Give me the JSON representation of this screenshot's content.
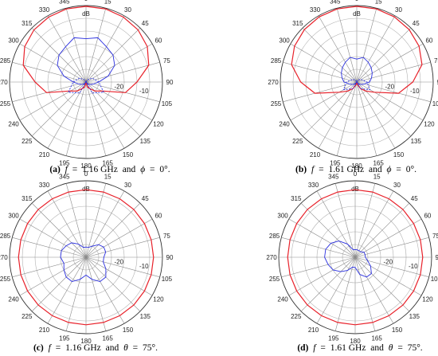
{
  "chart_data": [
    {
      "type": "polar",
      "label": "(a)",
      "caption": {
        "var1": "f",
        "freq": "1.16 GHz",
        "var2": "ϕ",
        "angle": "0°"
      },
      "unit": "dB",
      "radial_ticks": [
        "-20",
        "-10"
      ],
      "radial_range_db": [
        -30,
        0
      ],
      "angle_ticks": [
        "0",
        "15",
        "30",
        "45",
        "60",
        "75",
        "90",
        "105",
        "120",
        "135",
        "150",
        "165",
        "180",
        "195",
        "210",
        "225",
        "240",
        "255",
        "270",
        "285",
        "300",
        "315",
        "330",
        "345"
      ],
      "grid": true,
      "series": [
        {
          "color": "#e8212a",
          "style": "solid",
          "angles": [
            0,
            15,
            30,
            45,
            60,
            75,
            90,
            105,
            120,
            135,
            150,
            165,
            180,
            195,
            210,
            225,
            240,
            255,
            270,
            285,
            300,
            315,
            330,
            345
          ],
          "values": [
            -0.3,
            -0.3,
            -0.6,
            -1.1,
            -2.2,
            -4.5,
            -10,
            -14,
            -23,
            -25,
            -27,
            -28,
            -30,
            -28,
            -27,
            -25,
            -23,
            -14,
            -10,
            -4.5,
            -2.2,
            -1.1,
            -0.6,
            -0.3
          ]
        },
        {
          "color": "#2a2fe0",
          "style": "solid",
          "angles": [
            0,
            15,
            30,
            45,
            60,
            75,
            90,
            105,
            120,
            135,
            150,
            165,
            180,
            195,
            210,
            225,
            240,
            255,
            270,
            285,
            300,
            315,
            330,
            345
          ],
          "values": [
            -13,
            -12,
            -14,
            -15,
            -17,
            -21,
            -25,
            -27,
            -28,
            -29,
            -30,
            -30,
            -30,
            -30,
            -30,
            -29,
            -28,
            -27,
            -25,
            -21,
            -17,
            -15,
            -14,
            -12
          ]
        },
        {
          "color": "#2a2fe0",
          "style": "dashed",
          "angles": [
            0,
            30,
            60,
            90,
            120,
            150,
            180,
            210,
            240,
            270,
            300,
            330
          ],
          "values": [
            -30,
            -29,
            -27,
            -25,
            -22,
            -25,
            -30,
            -25,
            -22,
            -25,
            -27,
            -29
          ]
        }
      ]
    },
    {
      "type": "polar",
      "label": "(b)",
      "caption": {
        "var1": "f",
        "freq": "1.61 GHz",
        "var2": "ϕ",
        "angle": "0°"
      },
      "unit": "dB",
      "radial_ticks": [
        "-20",
        "-10"
      ],
      "radial_range_db": [
        -30,
        0
      ],
      "angle_ticks": [
        "0",
        "15",
        "30",
        "45",
        "60",
        "75",
        "90",
        "105",
        "120",
        "135",
        "150",
        "165",
        "180",
        "195",
        "210",
        "225",
        "240",
        "255",
        "270",
        "285",
        "300",
        "315",
        "330",
        "345"
      ],
      "grid": true,
      "series": [
        {
          "color": "#e8212a",
          "style": "solid",
          "angles": [
            0,
            15,
            30,
            45,
            60,
            75,
            90,
            105,
            120,
            135,
            150,
            165,
            180,
            195,
            210,
            225,
            240,
            255,
            270,
            285,
            300,
            315,
            330,
            345
          ],
          "values": [
            -0.3,
            -0.3,
            -0.5,
            -0.9,
            -1.8,
            -3.5,
            -8,
            -13,
            -22,
            -25,
            -27,
            -29,
            -30,
            -29,
            -27,
            -25,
            -22,
            -13,
            -8,
            -3.5,
            -1.8,
            -0.9,
            -0.5,
            -0.3
          ]
        },
        {
          "color": "#2a2fe0",
          "style": "solid",
          "angles": [
            0,
            15,
            30,
            45,
            60,
            75,
            90,
            105,
            120,
            135,
            150,
            165,
            180,
            195,
            210,
            225,
            240,
            255,
            270,
            285,
            300,
            315,
            330,
            345
          ],
          "values": [
            -21,
            -20,
            -21,
            -22,
            -23,
            -24,
            -25,
            -27,
            -28,
            -29,
            -30,
            -30,
            -30,
            -30,
            -30,
            -29,
            -28,
            -27,
            -25,
            -24,
            -23,
            -22,
            -21,
            -20
          ]
        },
        {
          "color": "#2a2fe0",
          "style": "dashed",
          "angles": [
            0,
            30,
            60,
            90,
            120,
            150,
            180,
            210,
            240,
            270,
            300,
            330
          ],
          "values": [
            -30,
            -29,
            -28,
            -26,
            -24,
            -27,
            -30,
            -27,
            -24,
            -26,
            -28,
            -29
          ]
        }
      ]
    },
    {
      "type": "polar",
      "label": "(c)",
      "caption": {
        "var1": "f",
        "freq": "1.16 GHz",
        "var2": "θ",
        "angle": "75°"
      },
      "unit": "dB",
      "radial_ticks": [
        "-20",
        "-10"
      ],
      "radial_range_db": [
        -30,
        0
      ],
      "angle_ticks": [
        "0",
        "15",
        "30",
        "45",
        "60",
        "75",
        "90",
        "105",
        "120",
        "135",
        "150",
        "165",
        "180",
        "195",
        "210",
        "225",
        "240",
        "255",
        "270",
        "285",
        "300",
        "315",
        "330",
        "345"
      ],
      "grid": true,
      "series": [
        {
          "color": "#e8212a",
          "style": "solid",
          "angles": [
            0,
            15,
            30,
            45,
            60,
            75,
            90,
            105,
            120,
            135,
            150,
            165,
            180,
            195,
            210,
            225,
            240,
            255,
            270,
            285,
            300,
            315,
            330,
            345
          ],
          "values": [
            -3.5,
            -3.5,
            -3.5,
            -3.5,
            -3.5,
            -3.5,
            -3.5,
            -3.5,
            -3.5,
            -3.5,
            -3.5,
            -3.5,
            -3.5,
            -3.5,
            -3.5,
            -3.5,
            -3.5,
            -3.5,
            -3.5,
            -3.5,
            -3.5,
            -3.5,
            -3.5,
            -3.5
          ]
        },
        {
          "color": "#2a2fe0",
          "style": "solid",
          "angles": [
            0,
            15,
            30,
            45,
            60,
            75,
            90,
            105,
            120,
            135,
            150,
            165,
            180,
            195,
            210,
            225,
            240,
            255,
            270,
            285,
            300,
            315,
            330,
            345
          ],
          "values": [
            -26,
            -26,
            -25,
            -23,
            -22,
            -22,
            -23,
            -23,
            -21,
            -19,
            -19,
            -21,
            -23,
            -21,
            -19,
            -19,
            -20,
            -21,
            -20,
            -20,
            -21,
            -22,
            -24,
            -26
          ]
        }
      ]
    },
    {
      "type": "polar",
      "label": "(d)",
      "caption": {
        "var1": "f",
        "freq": "1.61 GHz",
        "var2": "θ",
        "angle": "75°"
      },
      "unit": "dB",
      "radial_ticks": [
        "-20",
        "-10"
      ],
      "radial_range_db": [
        -30,
        0
      ],
      "angle_ticks": [
        "0",
        "15",
        "30",
        "45",
        "60",
        "75",
        "90",
        "105",
        "120",
        "135",
        "150",
        "165",
        "180",
        "195",
        "210",
        "225",
        "240",
        "255",
        "270",
        "285",
        "300",
        "315",
        "330",
        "345"
      ],
      "grid": true,
      "series": [
        {
          "color": "#e8212a",
          "style": "solid",
          "angles": [
            0,
            15,
            30,
            45,
            60,
            75,
            90,
            105,
            120,
            135,
            150,
            165,
            180,
            195,
            210,
            225,
            240,
            255,
            270,
            285,
            300,
            315,
            330,
            345
          ],
          "values": [
            -3.5,
            -3.5,
            -3.5,
            -3.5,
            -3.5,
            -3.5,
            -3.5,
            -3.5,
            -3.5,
            -3.5,
            -3.5,
            -3.5,
            -3.5,
            -3.5,
            -3.5,
            -3.5,
            -3.5,
            -3.5,
            -3.5,
            -3.5,
            -3.5,
            -3.5,
            -3.5,
            -3.5
          ]
        },
        {
          "color": "#2a2fe0",
          "style": "solid",
          "angles": [
            0,
            15,
            30,
            45,
            60,
            75,
            90,
            105,
            120,
            135,
            150,
            165,
            180,
            195,
            210,
            225,
            240,
            255,
            270,
            285,
            300,
            315,
            330,
            345
          ],
          "values": [
            -27,
            -27,
            -27,
            -27,
            -26,
            -26,
            -26,
            -25,
            -23,
            -21,
            -21,
            -23,
            -26,
            -26,
            -24,
            -22,
            -20,
            -19,
            -18,
            -18,
            -19,
            -21,
            -24,
            -27
          ]
        }
      ]
    }
  ]
}
